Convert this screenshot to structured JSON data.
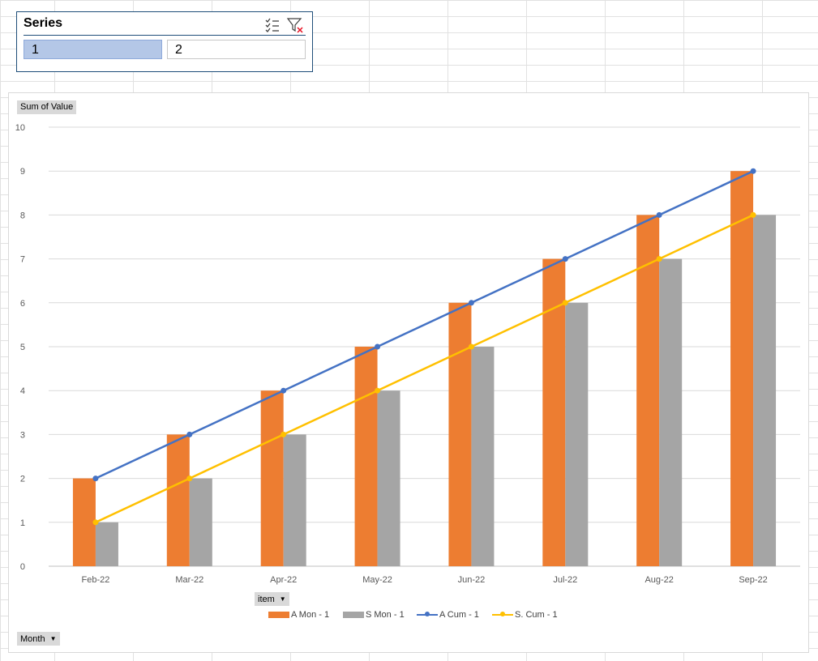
{
  "slicer": {
    "title": "Series",
    "icons": [
      "multi-select-icon",
      "clear-filter-icon"
    ],
    "items": [
      {
        "label": "1",
        "selected": true
      },
      {
        "label": "2",
        "selected": false
      }
    ]
  },
  "pivot_buttons": {
    "values_field": "Sum of Value",
    "legend_field": "item",
    "axis_field": "Month"
  },
  "colors": {
    "A Mon": "#ed7d31",
    "S Mon": "#a5a5a5",
    "A Cum": "#4472c4",
    "S Cum": "#ffc000",
    "gridline": "#d9d9d9",
    "slicer_selected": "#b4c7e7"
  },
  "chart_data": {
    "type": "bar",
    "categories": [
      "Feb-22",
      "Mar-22",
      "Apr-22",
      "May-22",
      "Jun-22",
      "Jul-22",
      "Aug-22",
      "Sep-22"
    ],
    "series": [
      {
        "name": "A Mon - 1",
        "type": "bar",
        "color": "#ed7d31",
        "values": [
          2,
          3,
          4,
          5,
          6,
          7,
          8,
          9
        ]
      },
      {
        "name": "S Mon - 1",
        "type": "bar",
        "color": "#a5a5a5",
        "values": [
          1,
          2,
          3,
          4,
          5,
          6,
          7,
          8
        ]
      },
      {
        "name": "A Cum - 1",
        "type": "line",
        "color": "#4472c4",
        "values": [
          2,
          3,
          4,
          5,
          6,
          7,
          8,
          9
        ]
      },
      {
        "name": "S. Cum - 1",
        "type": "line",
        "color": "#ffc000",
        "values": [
          1,
          2,
          3,
          4,
          5,
          6,
          7,
          8
        ]
      }
    ],
    "ylim": [
      0,
      10
    ],
    "yticks": [
      0,
      1,
      2,
      3,
      4,
      5,
      6,
      7,
      8,
      9,
      10
    ],
    "grid": true,
    "legend_position": "bottom"
  }
}
